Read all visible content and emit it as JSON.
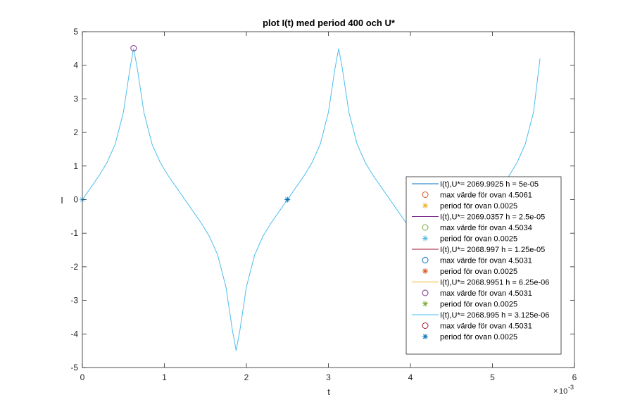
{
  "chart_data": {
    "type": "line",
    "title": "plot I(t) med period 400 och U*",
    "xlabel": "t",
    "ylabel": "I",
    "x_exponent_label": "10",
    "x_exponent_power": "-3",
    "x_multiplier_prefix": "×",
    "xlim": [
      0,
      6
    ],
    "ylim": [
      -5,
      5
    ],
    "x_scale": 0.001,
    "xticks": [
      0,
      1,
      2,
      3,
      4,
      5,
      6
    ],
    "yticks": [
      -5,
      -4,
      -3,
      -2,
      -1,
      0,
      1,
      2,
      3,
      4,
      5
    ],
    "grid": false,
    "legend_position": "bottom-right",
    "curve": {
      "color": "#4DBEEE",
      "period_x": 2.5,
      "peak_x": 0.625,
      "peak_y": 4.5,
      "trough_x": 1.875,
      "trough_y": -4.5,
      "end_x": 5.58,
      "points": [
        [
          0,
          0
        ],
        [
          0.1,
          0.35
        ],
        [
          0.2,
          0.7
        ],
        [
          0.3,
          1.1
        ],
        [
          0.4,
          1.65
        ],
        [
          0.5,
          2.6
        ],
        [
          0.58,
          3.9
        ],
        [
          0.625,
          4.5
        ],
        [
          0.67,
          3.9
        ],
        [
          0.75,
          2.6
        ],
        [
          0.85,
          1.65
        ],
        [
          0.95,
          1.1
        ],
        [
          1.05,
          0.7
        ],
        [
          1.15,
          0.35
        ],
        [
          1.25,
          0
        ],
        [
          1.35,
          -0.35
        ],
        [
          1.45,
          -0.7
        ],
        [
          1.55,
          -1.1
        ],
        [
          1.65,
          -1.65
        ],
        [
          1.75,
          -2.6
        ],
        [
          1.83,
          -3.9
        ],
        [
          1.875,
          -4.5
        ],
        [
          1.92,
          -3.9
        ],
        [
          2.0,
          -2.6
        ],
        [
          2.1,
          -1.65
        ],
        [
          2.2,
          -1.1
        ],
        [
          2.3,
          -0.7
        ],
        [
          2.4,
          -0.35
        ],
        [
          2.5,
          0
        ],
        [
          2.6,
          0.35
        ],
        [
          2.7,
          0.7
        ],
        [
          2.8,
          1.1
        ],
        [
          2.9,
          1.65
        ],
        [
          3.0,
          2.6
        ],
        [
          3.08,
          3.9
        ],
        [
          3.125,
          4.5
        ],
        [
          3.17,
          3.9
        ],
        [
          3.25,
          2.6
        ],
        [
          3.35,
          1.65
        ],
        [
          3.45,
          1.1
        ],
        [
          3.55,
          0.7
        ],
        [
          3.65,
          0.35
        ],
        [
          3.75,
          0
        ],
        [
          3.85,
          -0.35
        ],
        [
          3.95,
          -0.7
        ],
        [
          4.05,
          -1.1
        ],
        [
          4.15,
          -1.65
        ],
        [
          4.25,
          -2.6
        ],
        [
          4.33,
          -3.9
        ],
        [
          4.375,
          -4.5
        ],
        [
          4.42,
          -3.9
        ],
        [
          4.5,
          -2.6
        ],
        [
          4.6,
          -1.65
        ],
        [
          4.7,
          -1.1
        ],
        [
          4.8,
          -0.7
        ],
        [
          4.9,
          -0.35
        ],
        [
          5.0,
          0
        ],
        [
          5.1,
          0.35
        ],
        [
          5.2,
          0.7
        ],
        [
          5.3,
          1.1
        ],
        [
          5.4,
          1.65
        ],
        [
          5.5,
          2.6
        ],
        [
          5.58,
          4.2
        ]
      ]
    },
    "markers": [
      {
        "kind": "circle",
        "x": 0.625,
        "y": 4.5061,
        "color": "#7E2F8E"
      },
      {
        "kind": "star",
        "x": 0,
        "y": 0,
        "color": "#4DBEEE"
      },
      {
        "kind": "star",
        "x": 2.5,
        "y": 0,
        "color": "#0072BD"
      }
    ],
    "series": [
      {
        "name": "I(t),U*= 2069.9925 h = 5e-05",
        "kind": "line",
        "color": "#0072BD"
      },
      {
        "name": "max värde för ovan 4.5061",
        "kind": "circle",
        "color": "#D95319"
      },
      {
        "name": "period för ovan 0.0025",
        "kind": "star",
        "color": "#EDB120"
      },
      {
        "name": "I(t),U*= 2069.0357 h = 2.5e-05",
        "kind": "line",
        "color": "#7E2F8E"
      },
      {
        "name": "max värde för ovan 4.5034",
        "kind": "circle",
        "color": "#77AC30"
      },
      {
        "name": "period för ovan 0.0025",
        "kind": "star",
        "color": "#4DBEEE"
      },
      {
        "name": "I(t),U*= 2068.997 h = 1.25e-05",
        "kind": "line",
        "color": "#A2142F"
      },
      {
        "name": "max värde för ovan 4.5031",
        "kind": "circle",
        "color": "#0072BD"
      },
      {
        "name": "period för ovan 0.0025",
        "kind": "star",
        "color": "#D95319"
      },
      {
        "name": "I(t),U*= 2068.9951 h = 6.25e-06",
        "kind": "line",
        "color": "#EDB120"
      },
      {
        "name": "max värde för ovan 4.5031",
        "kind": "circle",
        "color": "#7E2F8E"
      },
      {
        "name": "period för ovan 0.0025",
        "kind": "star",
        "color": "#77AC30"
      },
      {
        "name": "I(t),U*= 2068.995 h = 3.125e-06",
        "kind": "line",
        "color": "#4DBEEE"
      },
      {
        "name": "max värde för ovan 4.5031",
        "kind": "circle",
        "color": "#A2142F"
      },
      {
        "name": "period för ovan 0.0025",
        "kind": "star",
        "color": "#0072BD"
      }
    ]
  }
}
